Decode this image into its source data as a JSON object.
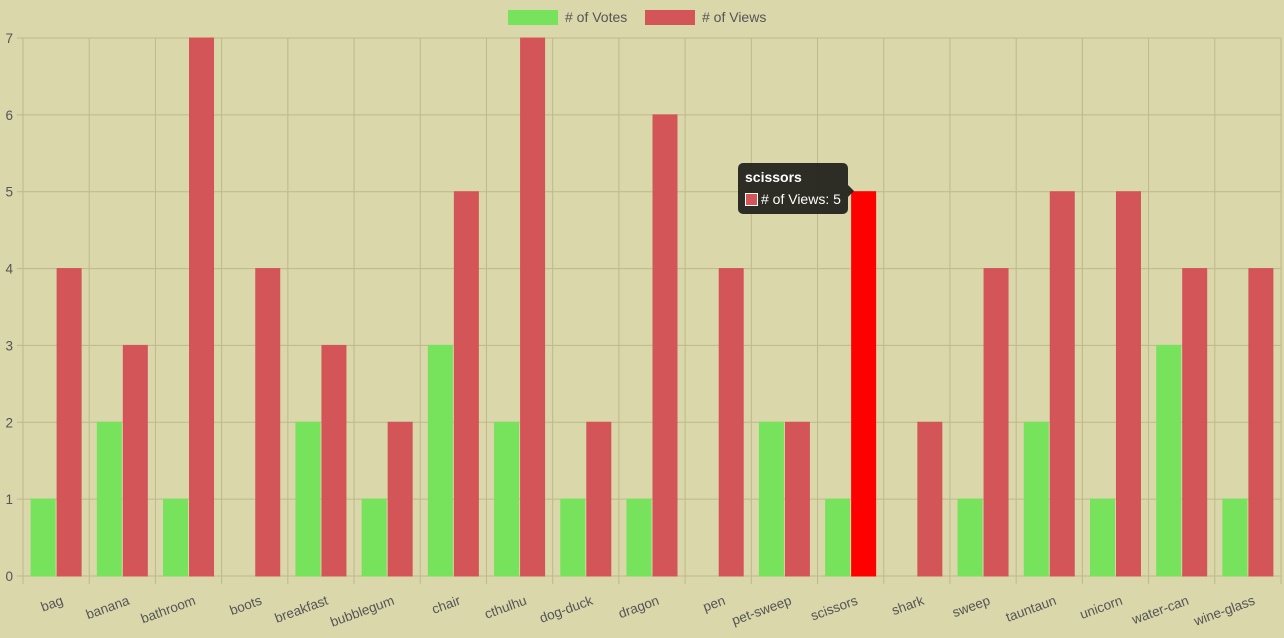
{
  "chart_data": {
    "type": "bar",
    "categories": [
      "bag",
      "banana",
      "bathroom",
      "boots",
      "breakfast",
      "bubblegum",
      "chair",
      "cthulhu",
      "dog-duck",
      "dragon",
      "pen",
      "pet-sweep",
      "scissors",
      "shark",
      "sweep",
      "tauntaun",
      "unicorn",
      "water-can",
      "wine-glass"
    ],
    "series": [
      {
        "name": "# of Votes",
        "color": "#77e25c",
        "values": [
          1,
          2,
          1,
          0,
          2,
          1,
          3,
          2,
          1,
          1,
          0,
          2,
          1,
          0,
          1,
          2,
          1,
          3,
          1
        ]
      },
      {
        "name": "# of Views",
        "color": "#d35557",
        "values": [
          4,
          3,
          7,
          4,
          3,
          2,
          5,
          7,
          2,
          6,
          4,
          2,
          5,
          2,
          4,
          5,
          5,
          4,
          4
        ]
      }
    ],
    "ylim": [
      0,
      7
    ],
    "yticks": [
      "0",
      "1",
      "2",
      "3",
      "4",
      "5",
      "6",
      "7"
    ],
    "grid": true,
    "legend_position": "top-center",
    "highlight": {
      "category": "scissors",
      "series": "# of Views",
      "color": "#ff0000"
    }
  },
  "tooltip": {
    "title": "scissors",
    "label": "# of Views: 5"
  }
}
